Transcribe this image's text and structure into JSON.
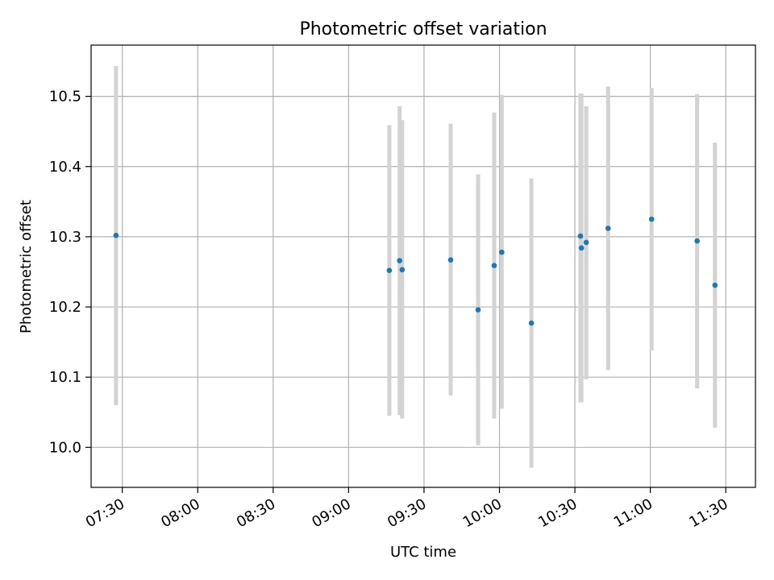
{
  "chart_data": {
    "type": "scatter",
    "title": "Photometric offset variation",
    "xlabel": "UTC time",
    "ylabel": "Photometric offset",
    "x_tick_labels": [
      "07:30",
      "08:00",
      "08:30",
      "09:00",
      "09:30",
      "10:00",
      "10:30",
      "11:00",
      "11:30"
    ],
    "x_tick_values_min": [
      450,
      480,
      510,
      540,
      570,
      600,
      630,
      660,
      690
    ],
    "xlim_min": [
      437.6,
      701.8
    ],
    "y_ticks": [
      10.0,
      10.1,
      10.2,
      10.3,
      10.4,
      10.5
    ],
    "y_tick_labels": [
      "10.0",
      "10.1",
      "10.2",
      "10.3",
      "10.4",
      "10.5"
    ],
    "ylim": [
      9.943,
      10.573
    ],
    "grid": true,
    "colors": {
      "points": "#1f77b4",
      "errorbars": "#d3d3d3",
      "grid": "#b0b0b0"
    },
    "points": [
      {
        "t": "07:27",
        "t_min": 447.5,
        "y": 10.302,
        "err_low": 10.06,
        "err_high": 10.543
      },
      {
        "t": "09:16",
        "t_min": 556.2,
        "y": 10.252,
        "err_low": 10.045,
        "err_high": 10.459
      },
      {
        "t": "09:20",
        "t_min": 560.3,
        "y": 10.266,
        "err_low": 10.046,
        "err_high": 10.486
      },
      {
        "t": "09:21",
        "t_min": 561.3,
        "y": 10.253,
        "err_low": 10.041,
        "err_high": 10.466
      },
      {
        "t": "09:41",
        "t_min": 580.6,
        "y": 10.267,
        "err_low": 10.074,
        "err_high": 10.461
      },
      {
        "t": "09:52",
        "t_min": 591.5,
        "y": 10.196,
        "err_low": 10.003,
        "err_high": 10.389
      },
      {
        "t": "09:58",
        "t_min": 597.9,
        "y": 10.259,
        "err_low": 10.041,
        "err_high": 10.477
      },
      {
        "t": "10:01",
        "t_min": 600.9,
        "y": 10.278,
        "err_low": 10.055,
        "err_high": 10.502
      },
      {
        "t": "10:13",
        "t_min": 612.7,
        "y": 10.177,
        "err_low": 9.971,
        "err_high": 10.383
      },
      {
        "t": "10:32",
        "t_min": 632.2,
        "y": 10.301,
        "err_low": 10.064,
        "err_high": 10.504
      },
      {
        "t": "10:33",
        "t_min": 632.6,
        "y": 10.284,
        "err_low": 10.064,
        "err_high": 10.504
      },
      {
        "t": "10:34",
        "t_min": 634.5,
        "y": 10.292,
        "err_low": 10.097,
        "err_high": 10.486
      },
      {
        "t": "10:43",
        "t_min": 643.2,
        "y": 10.312,
        "err_low": 10.11,
        "err_high": 10.514
      },
      {
        "t": "11:01",
        "t_min": 660.5,
        "y": 10.325,
        "err_low": 10.138,
        "err_high": 10.512
      },
      {
        "t": "11:19",
        "t_min": 678.6,
        "y": 10.294,
        "err_low": 10.084,
        "err_high": 10.503
      },
      {
        "t": "11:26",
        "t_min": 685.7,
        "y": 10.231,
        "err_low": 10.028,
        "err_high": 10.434
      }
    ]
  }
}
